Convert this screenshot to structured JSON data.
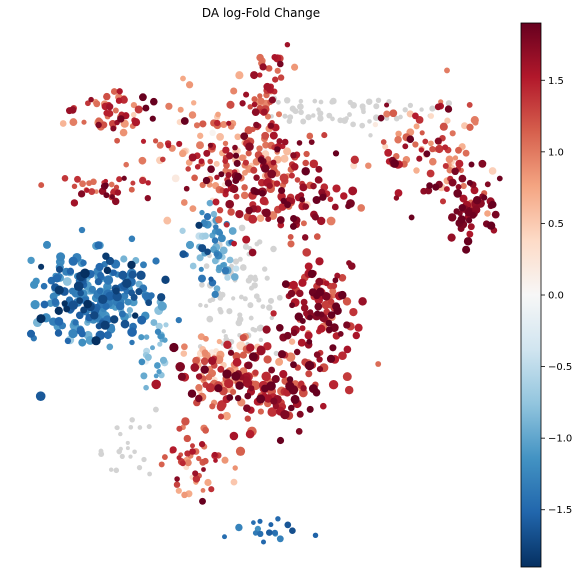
{
  "chart_data": {
    "type": "scatter",
    "title": "DA log-Fold Change",
    "xlabel": "",
    "ylabel": "",
    "axes_visible": false,
    "colormap": {
      "name": "RdBu_r",
      "label": "",
      "vmin": -1.9,
      "vmax": 1.9,
      "ticks": [
        1.5,
        1.0,
        0.5,
        0.0,
        -0.5,
        -1.0,
        -1.5
      ],
      "tick_labels": [
        "1.5",
        "1.0",
        "0.5",
        "0.0",
        "−0.5",
        "−1.0",
        "−1.5"
      ],
      "stops": [
        "#67001f",
        "#b2182b",
        "#d6604d",
        "#f4a582",
        "#fddbc7",
        "#f7f7f7",
        "#d1e5f0",
        "#92c5de",
        "#4393c3",
        "#2166ac",
        "#053061"
      ]
    },
    "not_significant_color": "#d3d3d3",
    "clusters": [
      {
        "region": "top-left-arm",
        "cx": -6.0,
        "cy": 6.3,
        "sx": 0.9,
        "sy": 0.5,
        "n": 55,
        "value": 1.3,
        "spread": 0.35,
        "size": 5.5
      },
      {
        "region": "top-center-stem",
        "cx": 0.3,
        "cy": 7.2,
        "sx": 0.35,
        "sy": 1.2,
        "n": 60,
        "value": 1.35,
        "spread": 0.3,
        "size": 5.5
      },
      {
        "region": "upper-middle",
        "cx": -1.4,
        "cy": 4.6,
        "sx": 1.6,
        "sy": 1.1,
        "n": 130,
        "value": 1.1,
        "spread": 0.45,
        "size": 5.5
      },
      {
        "region": "left-horizontal-arm",
        "cx": -6.3,
        "cy": 3.3,
        "sx": 1.1,
        "sy": 0.25,
        "n": 35,
        "value": 1.45,
        "spread": 0.3,
        "size": 5.0
      },
      {
        "region": "central-red",
        "cx": 1.2,
        "cy": 3.2,
        "sx": 1.7,
        "sy": 1.1,
        "n": 150,
        "value": 1.55,
        "spread": 0.3,
        "size": 6.0
      },
      {
        "region": "right-arc",
        "cx": 7.2,
        "cy": 4.9,
        "sx": 1.2,
        "sy": 1.1,
        "n": 95,
        "value": 1.15,
        "spread": 0.45,
        "size": 5.5
      },
      {
        "region": "right-arc-tip",
        "cx": 8.7,
        "cy": 2.3,
        "sx": 0.55,
        "sy": 0.8,
        "n": 55,
        "value": 1.75,
        "spread": 0.15,
        "size": 6.0
      },
      {
        "region": "top-grey-band",
        "cx": 3.6,
        "cy": 6.4,
        "sx": 1.6,
        "sy": 0.35,
        "n": 55,
        "value": null,
        "spread": 0,
        "size": 4.5
      },
      {
        "region": "center-blue-strip",
        "cx": -2.0,
        "cy": 1.0,
        "sx": 0.5,
        "sy": 0.9,
        "n": 60,
        "value": -1.1,
        "spread": 0.35,
        "size": 5.5
      },
      {
        "region": "center-grey",
        "cx": -0.6,
        "cy": -0.8,
        "sx": 0.9,
        "sy": 1.3,
        "n": 75,
        "value": null,
        "spread": 0,
        "size": 4.5
      },
      {
        "region": "left-blue-block",
        "cx": -6.8,
        "cy": -1.1,
        "sx": 1.3,
        "sy": 0.9,
        "n": 230,
        "value": -1.35,
        "spread": 0.3,
        "size": 6.5
      },
      {
        "region": "lower-left-blue-tail",
        "cx": -4.3,
        "cy": -3.0,
        "sx": 0.4,
        "sy": 0.8,
        "n": 30,
        "value": -0.95,
        "spread": 0.3,
        "size": 5.0
      },
      {
        "region": "right-lower-red",
        "cx": 2.5,
        "cy": -1.5,
        "sx": 0.9,
        "sy": 1.1,
        "n": 110,
        "value": 1.6,
        "spread": 0.3,
        "size": 6.0
      },
      {
        "region": "lower-center-red",
        "cx": 0.0,
        "cy": -4.4,
        "sx": 1.6,
        "sy": 0.8,
        "n": 160,
        "value": 1.45,
        "spread": 0.35,
        "size": 6.5
      },
      {
        "region": "lower-salmon",
        "cx": -1.8,
        "cy": -3.6,
        "sx": 0.7,
        "sy": 0.6,
        "n": 45,
        "value": 0.85,
        "spread": 0.3,
        "size": 5.5
      },
      {
        "region": "bottom-stem",
        "cx": -2.7,
        "cy": -7.5,
        "sx": 0.6,
        "sy": 0.9,
        "n": 50,
        "value": 1.2,
        "spread": 0.4,
        "size": 5.0
      },
      {
        "region": "bottom-left-tail",
        "cx": -5.4,
        "cy": -7.0,
        "sx": 0.6,
        "sy": 0.6,
        "n": 22,
        "value": null,
        "spread": 0,
        "size": 4.0
      },
      {
        "region": "bottom-blue-cluster",
        "cx": -0.2,
        "cy": -10.1,
        "sx": 0.9,
        "sy": 0.25,
        "n": 18,
        "value": -1.45,
        "spread": 0.2,
        "size": 5.0
      }
    ],
    "xlim": [
      -9.6,
      9.8
    ],
    "ylim": [
      -10.8,
      9.2
    ]
  }
}
